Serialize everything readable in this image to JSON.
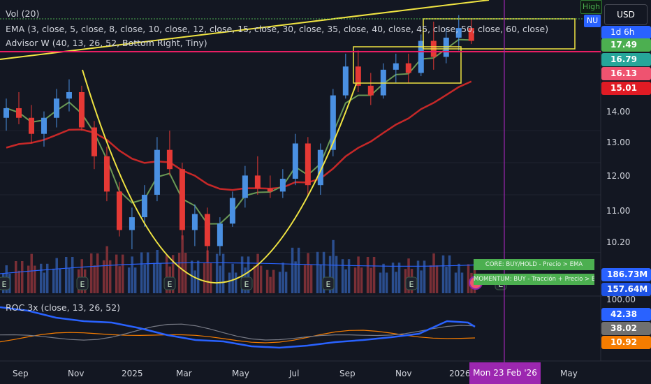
{
  "legends": {
    "volume": "Vol (20)",
    "ema": "EMA (3, close, 5, close, 8, close, 10, close, 12, close, 15, close, 30, close, 35, close, 40, close, 45, close, 50, close, 60, close)",
    "advisor": "Advisor W (40, 13, 26, 52, Bottom Right, Tiny)",
    "roc": "ROC 3x (close, 13, 26, 52)"
  },
  "top_right": {
    "high_label": "High",
    "symbol_label": "NU",
    "currency": "USD",
    "timeframe": "1d 6h"
  },
  "price_scale": {
    "tags": [
      {
        "text": "17.49",
        "color": "#4caf50"
      },
      {
        "text": "16.79",
        "color": "#26a69a"
      },
      {
        "text": "16.13",
        "color": "#ef5370"
      },
      {
        "text": "15.01",
        "color": "#e01b24"
      }
    ],
    "labels": [
      "14.00",
      "13.00",
      "12.00",
      "11.00",
      "10.20"
    ],
    "vol_tags": [
      {
        "text": "186.73M",
        "color": "#2962ff"
      },
      {
        "text": "157.64M",
        "color": "#1e53e5"
      }
    ],
    "roc_labels": [
      "100.00"
    ],
    "roc_tags": [
      {
        "text": "42.38",
        "color": "#2962ff"
      },
      {
        "text": "38.02",
        "color": "#707070"
      },
      {
        "text": "10.92",
        "color": "#f57c00"
      }
    ]
  },
  "signals": {
    "core": "CORE: BUY/HOLD - Precio > EMA",
    "momentum": "MOMENTUM: BUY - Tracción + Precio > EMA"
  },
  "time_axis": {
    "labels": [
      "Sep",
      "Nov",
      "2025",
      "Mar",
      "May",
      "Jul",
      "Sep",
      "Nov",
      "2026",
      "May"
    ],
    "crosshair_label": "Mon 23 Feb '26"
  },
  "earnings_marker": "E",
  "chart_data": {
    "type": "candlestick",
    "symbol": "NU",
    "currency": "USD",
    "x_range": [
      "2024-08",
      "2026-05"
    ],
    "y_range": [
      9.8,
      17.9
    ],
    "x_tick_labels": [
      "Sep",
      "Nov",
      "2025",
      "Mar",
      "May",
      "Jul",
      "Sep",
      "Nov",
      "2026",
      "May"
    ],
    "y_tick_labels": [
      "14.00",
      "13.00",
      "12.00",
      "11.00",
      "10.20"
    ],
    "ohlc": [
      {
        "date": "2024-08-22",
        "o": 14.4,
        "h": 15.0,
        "l": 14.0,
        "c": 14.7
      },
      {
        "date": "2024-09-05",
        "o": 14.7,
        "h": 15.2,
        "l": 14.2,
        "c": 14.4
      },
      {
        "date": "2024-09-19",
        "o": 14.4,
        "h": 14.8,
        "l": 13.6,
        "c": 13.9
      },
      {
        "date": "2024-10-03",
        "o": 13.9,
        "h": 14.6,
        "l": 13.5,
        "c": 14.4
      },
      {
        "date": "2024-10-17",
        "o": 14.4,
        "h": 15.3,
        "l": 14.1,
        "c": 15.0
      },
      {
        "date": "2024-10-31",
        "o": 15.0,
        "h": 15.6,
        "l": 14.6,
        "c": 15.2
      },
      {
        "date": "2024-11-14",
        "o": 15.2,
        "h": 15.4,
        "l": 14.0,
        "c": 14.1
      },
      {
        "date": "2024-11-28",
        "o": 14.1,
        "h": 14.3,
        "l": 12.8,
        "c": 13.2
      },
      {
        "date": "2024-12-12",
        "o": 13.2,
        "h": 13.5,
        "l": 11.8,
        "c": 12.1
      },
      {
        "date": "2024-12-26",
        "o": 12.1,
        "h": 12.4,
        "l": 10.7,
        "c": 10.9
      },
      {
        "date": "2025-01-09",
        "o": 10.9,
        "h": 11.6,
        "l": 10.3,
        "c": 11.3
      },
      {
        "date": "2025-01-23",
        "o": 11.3,
        "h": 12.3,
        "l": 11.0,
        "c": 12.0
      },
      {
        "date": "2025-02-06",
        "o": 12.0,
        "h": 13.8,
        "l": 11.8,
        "c": 13.4
      },
      {
        "date": "2025-02-20",
        "o": 13.4,
        "h": 14.0,
        "l": 12.6,
        "c": 12.8
      },
      {
        "date": "2025-03-06",
        "o": 12.8,
        "h": 13.0,
        "l": 10.6,
        "c": 10.9
      },
      {
        "date": "2025-03-20",
        "o": 10.9,
        "h": 11.7,
        "l": 10.4,
        "c": 11.4
      },
      {
        "date": "2025-04-03",
        "o": 11.4,
        "h": 11.6,
        "l": 9.9,
        "c": 10.4
      },
      {
        "date": "2025-04-17",
        "o": 10.4,
        "h": 11.3,
        "l": 10.1,
        "c": 11.1
      },
      {
        "date": "2025-05-01",
        "o": 11.1,
        "h": 12.1,
        "l": 11.0,
        "c": 11.9
      },
      {
        "date": "2025-05-15",
        "o": 11.9,
        "h": 12.9,
        "l": 11.6,
        "c": 12.6
      },
      {
        "date": "2025-05-29",
        "o": 12.6,
        "h": 13.2,
        "l": 12.0,
        "c": 12.2
      },
      {
        "date": "2025-06-12",
        "o": 12.2,
        "h": 12.6,
        "l": 11.9,
        "c": 12.1
      },
      {
        "date": "2025-06-26",
        "o": 12.1,
        "h": 12.8,
        "l": 11.9,
        "c": 12.5
      },
      {
        "date": "2025-07-10",
        "o": 12.5,
        "h": 13.9,
        "l": 12.3,
        "c": 13.6
      },
      {
        "date": "2025-07-24",
        "o": 13.6,
        "h": 13.8,
        "l": 12.0,
        "c": 12.3
      },
      {
        "date": "2025-08-07",
        "o": 12.3,
        "h": 13.6,
        "l": 12.0,
        "c": 13.4
      },
      {
        "date": "2025-08-21",
        "o": 13.4,
        "h": 15.3,
        "l": 13.2,
        "c": 15.1
      },
      {
        "date": "2025-09-04",
        "o": 15.1,
        "h": 16.4,
        "l": 15.0,
        "c": 16.0
      },
      {
        "date": "2025-09-18",
        "o": 16.0,
        "h": 16.5,
        "l": 15.2,
        "c": 15.4
      },
      {
        "date": "2025-10-02",
        "o": 15.4,
        "h": 15.8,
        "l": 14.8,
        "c": 15.1
      },
      {
        "date": "2025-10-16",
        "o": 15.1,
        "h": 16.1,
        "l": 15.0,
        "c": 15.9
      },
      {
        "date": "2025-10-30",
        "o": 15.9,
        "h": 16.4,
        "l": 15.5,
        "c": 16.1
      },
      {
        "date": "2025-11-13",
        "o": 16.1,
        "h": 16.4,
        "l": 15.5,
        "c": 15.8
      },
      {
        "date": "2025-11-27",
        "o": 15.8,
        "h": 17.0,
        "l": 15.7,
        "c": 16.8
      },
      {
        "date": "2025-12-11",
        "o": 16.8,
        "h": 17.4,
        "l": 15.9,
        "c": 16.3
      },
      {
        "date": "2025-12-25",
        "o": 16.3,
        "h": 17.2,
        "l": 16.1,
        "c": 16.9
      },
      {
        "date": "2026-01-08",
        "o": 16.9,
        "h": 17.6,
        "l": 16.5,
        "c": 17.2
      },
      {
        "date": "2026-01-22",
        "o": 17.2,
        "h": 17.5,
        "l": 16.7,
        "c": 16.8
      }
    ],
    "ema_fast_color": "#6a9955",
    "ema_slow_color": "#c62828",
    "annotations": [
      "High",
      "NU"
    ],
    "crosshair_date": "Mon 23 Feb '26",
    "volume_tags": [
      "186.73M",
      "157.64M"
    ],
    "roc_series": [
      {
        "color": "#2962ff",
        "last": "42.38"
      },
      {
        "color": "#707070",
        "last": "38.02"
      },
      {
        "color": "#f57c00",
        "last": "10.92"
      }
    ]
  }
}
